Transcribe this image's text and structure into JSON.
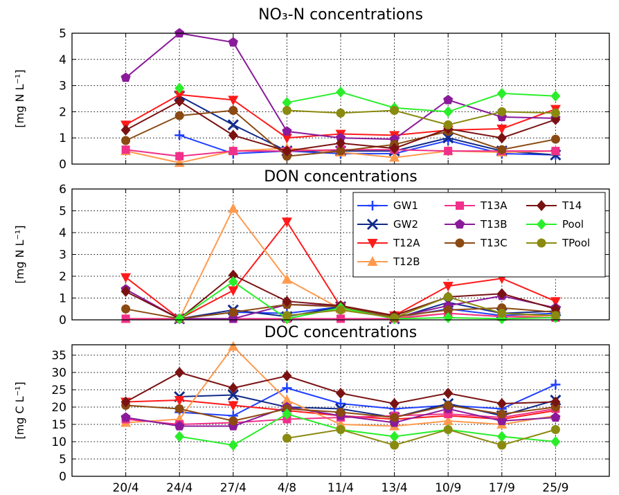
{
  "chart_data": [
    {
      "type": "line",
      "title": "NO₃-N concentrations",
      "ylabel": "[mg N L⁻¹]",
      "ylim": [
        0,
        5
      ],
      "yticks": [
        0,
        1,
        2,
        3,
        4,
        5
      ],
      "grid": true,
      "series": [
        {
          "name": "GW1",
          "color": "#1f3fff",
          "marker": "plus",
          "values": [
            null,
            1.1,
            0.4,
            0.5,
            0.4,
            0.4,
            0.9,
            0.4,
            0.35
          ]
        },
        {
          "name": "GW2",
          "color": "#102a8a",
          "marker": "x",
          "values": [
            null,
            2.6,
            1.5,
            0.5,
            0.5,
            0.5,
            1.0,
            0.5,
            0.35
          ]
        },
        {
          "name": "T12A",
          "color": "#ff1a1a",
          "marker": "tri-down",
          "values": [
            1.5,
            2.65,
            2.45,
            1.0,
            1.15,
            1.1,
            1.3,
            1.35,
            2.1
          ]
        },
        {
          "name": "T12B",
          "color": "#ff9a4d",
          "marker": "tri-up",
          "values": [
            0.5,
            0.05,
            0.5,
            0.6,
            0.45,
            0.25,
            0.5,
            0.45,
            0.5
          ]
        },
        {
          "name": "T13A",
          "color": "#f0308a",
          "marker": "square",
          "values": [
            0.55,
            0.3,
            0.5,
            0.5,
            0.55,
            0.55,
            0.5,
            0.5,
            0.5
          ]
        },
        {
          "name": "T13B",
          "color": "#8a1a9a",
          "marker": "pentagon",
          "values": [
            3.3,
            5.0,
            4.65,
            1.25,
            1.0,
            0.95,
            2.45,
            1.8,
            1.75
          ]
        },
        {
          "name": "T13C",
          "color": "#8a4a12",
          "marker": "circle",
          "values": [
            0.9,
            1.85,
            2.05,
            0.3,
            0.5,
            0.75,
            1.25,
            0.55,
            0.95
          ]
        },
        {
          "name": "T14",
          "color": "#7a1212",
          "marker": "diamond",
          "values": [
            1.3,
            2.4,
            1.1,
            0.5,
            0.8,
            0.6,
            1.35,
            1.0,
            1.7
          ]
        },
        {
          "name": "Pool",
          "color": "#2aee2a",
          "marker": "diamond",
          "values": [
            null,
            2.9,
            null,
            2.35,
            2.75,
            2.15,
            2.0,
            2.7,
            2.6
          ]
        },
        {
          "name": "TPool",
          "color": "#8a8a10",
          "marker": "circle",
          "values": [
            null,
            null,
            null,
            2.05,
            1.95,
            2.05,
            1.5,
            2.0,
            1.95
          ]
        }
      ]
    },
    {
      "type": "line",
      "title": "DON concentrations",
      "ylabel": "[mg N L⁻¹]",
      "ylim": [
        0,
        6
      ],
      "yticks": [
        0,
        1,
        2,
        3,
        4,
        5,
        6
      ],
      "grid": true,
      "legend": "top-right",
      "series": [
        {
          "name": "GW1",
          "color": "#1f3fff",
          "marker": "plus",
          "values": [
            null,
            0.05,
            0.35,
            0.3,
            0.6,
            0.1,
            0.5,
            0.2,
            0.3
          ]
        },
        {
          "name": "GW2",
          "color": "#102a8a",
          "marker": "x",
          "values": [
            null,
            0.05,
            0.45,
            0.15,
            0.6,
            0.05,
            0.8,
            0.3,
            0.4
          ]
        },
        {
          "name": "T12A",
          "color": "#ff1a1a",
          "marker": "tri-down",
          "values": [
            1.95,
            0.05,
            1.35,
            4.5,
            0.6,
            0.2,
            1.55,
            1.9,
            0.85
          ]
        },
        {
          "name": "T12B",
          "color": "#ff9a4d",
          "marker": "tri-up",
          "values": [
            0.05,
            0.05,
            5.1,
            1.85,
            0.5,
            0.1,
            0.3,
            0.15,
            0.2
          ]
        },
        {
          "name": "T13A",
          "color": "#f0308a",
          "marker": "square",
          "values": [
            0.05,
            0.05,
            0.05,
            0.05,
            0.05,
            0.05,
            0.3,
            0.15,
            0.1
          ]
        },
        {
          "name": "T13B",
          "color": "#8a1a9a",
          "marker": "pentagon",
          "values": [
            1.4,
            0.05,
            0.05,
            0.7,
            0.65,
            0.1,
            0.65,
            1.1,
            0.55
          ]
        },
        {
          "name": "T13C",
          "color": "#8a4a12",
          "marker": "circle",
          "values": [
            0.5,
            0.05,
            0.35,
            0.7,
            0.6,
            0.15,
            0.45,
            0.55,
            0.35
          ]
        },
        {
          "name": "T14",
          "color": "#7a1212",
          "marker": "diamond",
          "values": [
            1.3,
            0.05,
            2.05,
            0.85,
            0.65,
            0.2,
            1.05,
            1.2,
            0.5
          ]
        },
        {
          "name": "Pool",
          "color": "#2aee2a",
          "marker": "diamond",
          "values": [
            null,
            0.05,
            1.75,
            0.05,
            0.55,
            0.05,
            0.1,
            0.05,
            0.1
          ]
        },
        {
          "name": "TPool",
          "color": "#8a8a10",
          "marker": "circle",
          "values": [
            null,
            null,
            null,
            0.2,
            0.45,
            0.1,
            1.05,
            0.3,
            0.2
          ]
        }
      ]
    },
    {
      "type": "line",
      "title": "DOC concentrations",
      "ylabel": "[mg C L⁻¹]",
      "ylim": [
        0,
        38
      ],
      "yticks": [
        0,
        5,
        10,
        15,
        20,
        25,
        30,
        35
      ],
      "grid": true,
      "series": [
        {
          "name": "GW1",
          "color": "#1f3fff",
          "marker": "plus",
          "values": [
            null,
            18.5,
            17.5,
            25.5,
            21.0,
            19.5,
            20.5,
            19.5,
            26.5
          ]
        },
        {
          "name": "GW2",
          "color": "#102a8a",
          "marker": "x",
          "values": [
            null,
            23.0,
            23.5,
            20.0,
            19.5,
            17.0,
            21.0,
            17.5,
            22.0
          ]
        },
        {
          "name": "T12A",
          "color": "#ff1a1a",
          "marker": "tri-down",
          "values": [
            21.5,
            22.0,
            20.5,
            19.0,
            17.5,
            16.5,
            17.5,
            16.5,
            19.0
          ]
        },
        {
          "name": "T12B",
          "color": "#ff9a4d",
          "marker": "tri-up",
          "values": [
            15.5,
            16.5,
            37.5,
            22.0,
            15.0,
            14.5,
            16.0,
            15.0,
            17.5
          ]
        },
        {
          "name": "T13A",
          "color": "#f0308a",
          "marker": "square",
          "values": [
            16.5,
            15.0,
            15.5,
            16.5,
            17.0,
            17.5,
            18.0,
            17.0,
            19.5
          ]
        },
        {
          "name": "T13B",
          "color": "#8a1a9a",
          "marker": "pentagon",
          "values": [
            17.0,
            14.5,
            14.5,
            20.0,
            17.5,
            15.5,
            19.5,
            16.0,
            17.0
          ]
        },
        {
          "name": "T13C",
          "color": "#8a4a12",
          "marker": "circle",
          "values": [
            20.5,
            19.5,
            16.0,
            19.5,
            18.5,
            17.0,
            20.5,
            18.0,
            20.0
          ]
        },
        {
          "name": "T14",
          "color": "#7a1212",
          "marker": "diamond",
          "values": [
            21.5,
            30.0,
            25.5,
            29.0,
            24.0,
            21.0,
            24.0,
            21.0,
            21.5
          ]
        },
        {
          "name": "Pool",
          "color": "#2aee2a",
          "marker": "diamond",
          "values": [
            null,
            11.5,
            9.0,
            18.0,
            13.5,
            11.5,
            13.5,
            11.5,
            10.0
          ]
        },
        {
          "name": "TPool",
          "color": "#8a8a10",
          "marker": "circle",
          "values": [
            null,
            null,
            null,
            11.0,
            13.5,
            9.0,
            13.5,
            9.0,
            13.5
          ]
        }
      ]
    }
  ],
  "categories": [
    "20/4",
    "24/4",
    "27/4",
    "4/8",
    "11/4",
    "13/4",
    "10/9",
    "17/9",
    "25/9"
  ],
  "legend_order": [
    "GW1",
    "GW2",
    "T12A",
    "T12B",
    "T13A",
    "T13B",
    "T13C",
    "T14",
    "Pool",
    "TPool"
  ]
}
